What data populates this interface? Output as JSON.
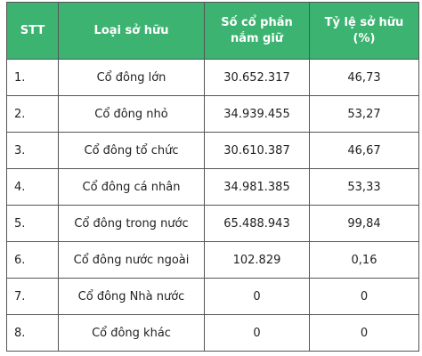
{
  "table": {
    "header": [
      "STT",
      "Loại sở hữu",
      "Số cổ phần nắm giữ",
      "Tỷ lệ sở hữu (%)"
    ],
    "rows": [
      [
        "1.",
        "Cổ đông lớn",
        "30.652.317",
        "46,73"
      ],
      [
        "2.",
        "Cổ đông nhỏ",
        "34.939.455",
        "53,27"
      ],
      [
        "3.",
        "Cổ đông tổ chức",
        "30.610.387",
        "46,67"
      ],
      [
        "4.",
        "Cổ đông cá nhân",
        "34.981.385",
        "53,33"
      ],
      [
        "5.",
        "Cổ đông trong nước",
        "65.488.943",
        "99,84"
      ],
      [
        "6.",
        "Cổ đông nước ngoài",
        "102.829",
        "0,16"
      ],
      [
        "7.",
        "Cổ đông Nhà nước",
        "0",
        "0"
      ],
      [
        "8.",
        "Cổ đông khác",
        "0",
        "0"
      ]
    ]
  }
}
